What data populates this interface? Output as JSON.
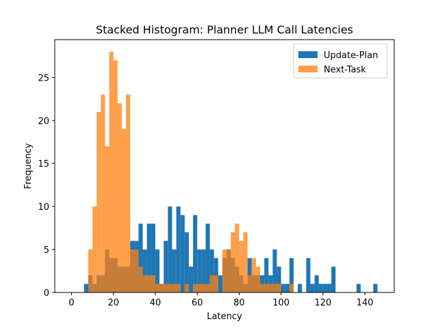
{
  "chart_data": {
    "type": "bar",
    "subtype": "overlaid-histogram",
    "title": "Stacked Histogram: Planner LLM Call Latencies",
    "xlabel": "Latency",
    "ylabel": "Frequency",
    "xlim": [
      -8,
      154
    ],
    "ylim": [
      0,
      29.4
    ],
    "xticks": [
      0,
      20,
      40,
      60,
      80,
      100,
      120,
      140
    ],
    "yticks": [
      0,
      5,
      10,
      15,
      20,
      25
    ],
    "bin_width": 2,
    "grid": false,
    "legend_position": "top-right",
    "series": [
      {
        "name": "Update-Plan",
        "color": "#1f77b4",
        "opacity": 1.0,
        "bins": [
          [
            6,
            1
          ],
          [
            8,
            2
          ],
          [
            10,
            1
          ],
          [
            12,
            2
          ],
          [
            14,
            2
          ],
          [
            16,
            5
          ],
          [
            18,
            4
          ],
          [
            20,
            4
          ],
          [
            22,
            3
          ],
          [
            24,
            3
          ],
          [
            26,
            3
          ],
          [
            28,
            6
          ],
          [
            30,
            6
          ],
          [
            32,
            8
          ],
          [
            34,
            5
          ],
          [
            36,
            8
          ],
          [
            38,
            8
          ],
          [
            40,
            5
          ],
          [
            42,
            1
          ],
          [
            44,
            6
          ],
          [
            46,
            10
          ],
          [
            48,
            5
          ],
          [
            50,
            10
          ],
          [
            52,
            9
          ],
          [
            54,
            7
          ],
          [
            56,
            3
          ],
          [
            58,
            9
          ],
          [
            60,
            5
          ],
          [
            62,
            5
          ],
          [
            64,
            8
          ],
          [
            66,
            5
          ],
          [
            68,
            4
          ],
          [
            70,
            2
          ],
          [
            72,
            4
          ],
          [
            74,
            5
          ],
          [
            76,
            4
          ],
          [
            78,
            3
          ],
          [
            80,
            2
          ],
          [
            82,
            1
          ],
          [
            84,
            4
          ],
          [
            86,
            2
          ],
          [
            88,
            2
          ],
          [
            90,
            2
          ],
          [
            92,
            4
          ],
          [
            94,
            2
          ],
          [
            96,
            5
          ],
          [
            98,
            3
          ],
          [
            100,
            1
          ],
          [
            102,
            1
          ],
          [
            104,
            4
          ],
          [
            108,
            1
          ],
          [
            112,
            4
          ],
          [
            114,
            1
          ],
          [
            116,
            2
          ],
          [
            118,
            1
          ],
          [
            120,
            1
          ],
          [
            122,
            1
          ],
          [
            124,
            3
          ],
          [
            136,
            1
          ],
          [
            144,
            1
          ]
        ]
      },
      {
        "name": "Next-Task",
        "color": "#ff7f0e",
        "opacity": 0.75,
        "bins": [
          [
            8,
            5
          ],
          [
            10,
            10
          ],
          [
            12,
            21
          ],
          [
            14,
            23
          ],
          [
            16,
            17
          ],
          [
            18,
            28
          ],
          [
            20,
            27
          ],
          [
            22,
            22
          ],
          [
            24,
            19
          ],
          [
            26,
            23
          ],
          [
            28,
            5
          ],
          [
            30,
            5
          ],
          [
            32,
            3
          ],
          [
            34,
            2
          ],
          [
            36,
            2
          ],
          [
            38,
            2
          ],
          [
            40,
            1
          ],
          [
            42,
            1
          ],
          [
            44,
            1
          ],
          [
            46,
            1
          ],
          [
            48,
            1
          ],
          [
            50,
            1
          ],
          [
            54,
            1
          ],
          [
            58,
            1
          ],
          [
            60,
            1
          ],
          [
            62,
            1
          ],
          [
            64,
            1
          ],
          [
            66,
            2
          ],
          [
            68,
            2
          ],
          [
            72,
            5
          ],
          [
            74,
            5
          ],
          [
            76,
            7
          ],
          [
            78,
            8
          ],
          [
            80,
            6
          ],
          [
            82,
            7
          ],
          [
            84,
            2
          ],
          [
            86,
            4
          ],
          [
            88,
            3
          ],
          [
            90,
            1
          ],
          [
            92,
            1
          ],
          [
            94,
            1
          ],
          [
            96,
            1
          ],
          [
            98,
            1
          ],
          [
            104,
            1
          ]
        ]
      }
    ]
  }
}
